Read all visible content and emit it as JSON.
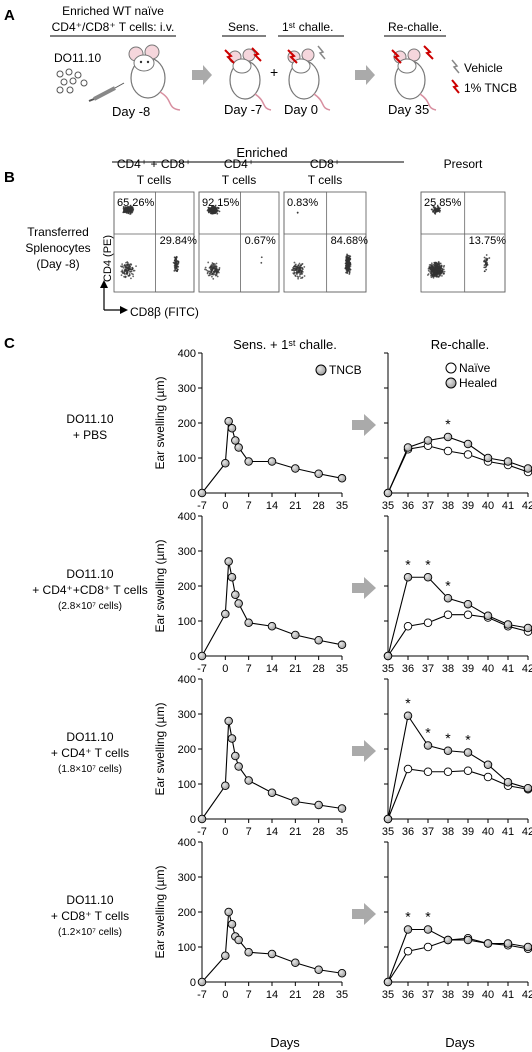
{
  "panel_a": {
    "letter": "A",
    "header_line1": "Enriched WT naïve",
    "header_line2": "CD4⁺/CD8⁺ T cells: i.v.",
    "strain": "DO11.10",
    "day_m8": "Day -8",
    "sens": "Sens.",
    "first_challe": "1ˢᵗ challe.",
    "plus": "+",
    "re_challe": "Re-challe.",
    "day_m7": "Day -7",
    "day_0": "Day 0",
    "day_35": "Day 35",
    "legend_vehicle": "Vehicle",
    "legend_tncb": "1% TNCB"
  },
  "panel_b": {
    "letter": "B",
    "enriched": "Enriched",
    "row_label": [
      "Transferred",
      "Splenocytes",
      "(Day -8)"
    ],
    "y_axis": "CD4 (PE)",
    "x_axis": "CD8β (FITC)",
    "plots": [
      {
        "title1": "CD4⁺ + CD8⁺",
        "title2": "T cells",
        "q_ul": "65.26%",
        "q_lr": "29.84%",
        "cd4": 0.65,
        "cd8": 0.3
      },
      {
        "title1": "CD4⁺",
        "title2": "T cells",
        "q_ul": "92.15%",
        "q_lr": "0.67%",
        "cd4": 0.92,
        "cd8": 0.007
      },
      {
        "title1": "CD8⁺",
        "title2": "T cells",
        "q_ul": "0.83%",
        "q_lr": "84.68%",
        "cd4": 0.008,
        "cd8": 0.85
      },
      {
        "title1": "Presort",
        "title2": "",
        "q_ul": "25.85%",
        "q_lr": "13.75%",
        "cd4": 0.26,
        "cd8": 0.14
      }
    ]
  },
  "panel_c": {
    "letter": "C",
    "col1_title": "Sens. + 1ˢᵗ challe.",
    "col2_title": "Re-challe.",
    "legend_tncb": "TNCB",
    "legend_naive": "Naïve",
    "legend_healed": "Healed",
    "ylabel": "Ear swelling (µm)",
    "xlabel": "Days",
    "rows": [
      {
        "l1": "DO11.10",
        "l2": "+ PBS",
        "l3": ""
      },
      {
        "l1": "DO11.10",
        "l2": "+ CD4⁺+CD8⁺ T cells",
        "l3": "(2.8×10⁷ cells)"
      },
      {
        "l1": "DO11.10",
        "l2": "+ CD4⁺ T cells",
        "l3": "(1.8×10⁷ cells)"
      },
      {
        "l1": "DO11.10",
        "l2": "+ CD8⁺ T cells",
        "l3": "(1.2×10⁷ cells)"
      }
    ]
  },
  "chart_data": [
    {
      "type": "line",
      "panel": "C-PBS-sens",
      "x": [
        -7,
        0,
        1,
        2,
        3,
        4,
        7,
        14,
        21,
        28,
        35
      ],
      "ylim": [
        0,
        400
      ],
      "xticks": [
        -7,
        0,
        7,
        14,
        21,
        28,
        35
      ],
      "yticks": [
        0,
        100,
        200,
        300,
        400
      ],
      "series": [
        {
          "name": "TNCB",
          "y": [
            0,
            85,
            205,
            185,
            150,
            130,
            90,
            90,
            70,
            55,
            42
          ]
        }
      ]
    },
    {
      "type": "line",
      "panel": "C-PBS-re",
      "x": [
        35,
        36,
        37,
        38,
        39,
        40,
        41,
        42
      ],
      "ylim": [
        0,
        400
      ],
      "xticks": [
        35,
        36,
        37,
        38,
        39,
        40,
        41,
        42
      ],
      "yticks": [
        0,
        100,
        200,
        300,
        400
      ],
      "series": [
        {
          "name": "Naïve",
          "y": [
            0,
            125,
            135,
            120,
            110,
            90,
            80,
            60
          ]
        },
        {
          "name": "Healed",
          "y": [
            0,
            130,
            150,
            160,
            140,
            100,
            90,
            70
          ]
        }
      ],
      "annotations": [
        {
          "x": 38,
          "text": "*"
        }
      ]
    },
    {
      "type": "line",
      "panel": "C-CD4CD8-sens",
      "x": [
        -7,
        0,
        1,
        2,
        3,
        4,
        7,
        14,
        21,
        28,
        35
      ],
      "ylim": [
        0,
        400
      ],
      "xticks": [
        -7,
        0,
        7,
        14,
        21,
        28,
        35
      ],
      "yticks": [
        0,
        100,
        200,
        300,
        400
      ],
      "series": [
        {
          "name": "TNCB",
          "y": [
            0,
            120,
            270,
            225,
            175,
            150,
            95,
            85,
            60,
            45,
            32
          ]
        }
      ]
    },
    {
      "type": "line",
      "panel": "C-CD4CD8-re",
      "x": [
        35,
        36,
        37,
        38,
        39,
        40,
        41,
        42
      ],
      "ylim": [
        0,
        400
      ],
      "xticks": [
        35,
        36,
        37,
        38,
        39,
        40,
        41,
        42
      ],
      "yticks": [
        0,
        100,
        200,
        300,
        400
      ],
      "series": [
        {
          "name": "Naïve",
          "y": [
            0,
            85,
            95,
            118,
            118,
            110,
            85,
            70
          ]
        },
        {
          "name": "Healed",
          "y": [
            0,
            225,
            225,
            165,
            148,
            115,
            90,
            80
          ]
        }
      ],
      "annotations": [
        {
          "x": 36,
          "text": "*"
        },
        {
          "x": 37,
          "text": "*"
        },
        {
          "x": 38,
          "text": "*"
        }
      ]
    },
    {
      "type": "line",
      "panel": "C-CD4-sens",
      "x": [
        -7,
        0,
        1,
        2,
        3,
        4,
        7,
        14,
        21,
        28,
        35
      ],
      "ylim": [
        0,
        400
      ],
      "xticks": [
        -7,
        0,
        7,
        14,
        21,
        28,
        35
      ],
      "yticks": [
        0,
        100,
        200,
        300,
        400
      ],
      "series": [
        {
          "name": "TNCB",
          "y": [
            0,
            95,
            280,
            230,
            180,
            150,
            110,
            75,
            50,
            40,
            30
          ]
        }
      ]
    },
    {
      "type": "line",
      "panel": "C-CD4-re",
      "x": [
        35,
        36,
        37,
        38,
        39,
        40,
        41,
        42
      ],
      "ylim": [
        0,
        400
      ],
      "xticks": [
        35,
        36,
        37,
        38,
        39,
        40,
        41,
        42
      ],
      "yticks": [
        0,
        100,
        200,
        300,
        400
      ],
      "series": [
        {
          "name": "Naïve",
          "y": [
            0,
            143,
            135,
            135,
            138,
            120,
            95,
            85
          ]
        },
        {
          "name": "Healed",
          "y": [
            0,
            295,
            210,
            195,
            190,
            155,
            105,
            88
          ]
        }
      ],
      "annotations": [
        {
          "x": 36,
          "text": "*"
        },
        {
          "x": 37,
          "text": "*"
        },
        {
          "x": 38,
          "text": "*"
        },
        {
          "x": 39,
          "text": "*"
        }
      ]
    },
    {
      "type": "line",
      "panel": "C-CD8-sens",
      "x": [
        -7,
        0,
        1,
        2,
        3,
        4,
        7,
        14,
        21,
        28,
        35
      ],
      "ylim": [
        0,
        400
      ],
      "xticks": [
        -7,
        0,
        7,
        14,
        21,
        28,
        35
      ],
      "yticks": [
        0,
        100,
        200,
        300,
        400
      ],
      "series": [
        {
          "name": "TNCB",
          "y": [
            0,
            75,
            200,
            165,
            130,
            120,
            85,
            80,
            55,
            35,
            25
          ]
        }
      ]
    },
    {
      "type": "line",
      "panel": "C-CD8-re",
      "x": [
        35,
        36,
        37,
        38,
        39,
        40,
        41,
        42
      ],
      "ylim": [
        0,
        400
      ],
      "xticks": [
        35,
        36,
        37,
        38,
        39,
        40,
        41,
        42
      ],
      "yticks": [
        0,
        100,
        200,
        300,
        400
      ],
      "series": [
        {
          "name": "Naïve",
          "y": [
            0,
            88,
            100,
            120,
            125,
            110,
            105,
            95
          ]
        },
        {
          "name": "Healed",
          "y": [
            0,
            150,
            150,
            120,
            120,
            110,
            110,
            100
          ]
        }
      ],
      "annotations": [
        {
          "x": 36,
          "text": "*"
        },
        {
          "x": 37,
          "text": "*"
        }
      ]
    }
  ]
}
